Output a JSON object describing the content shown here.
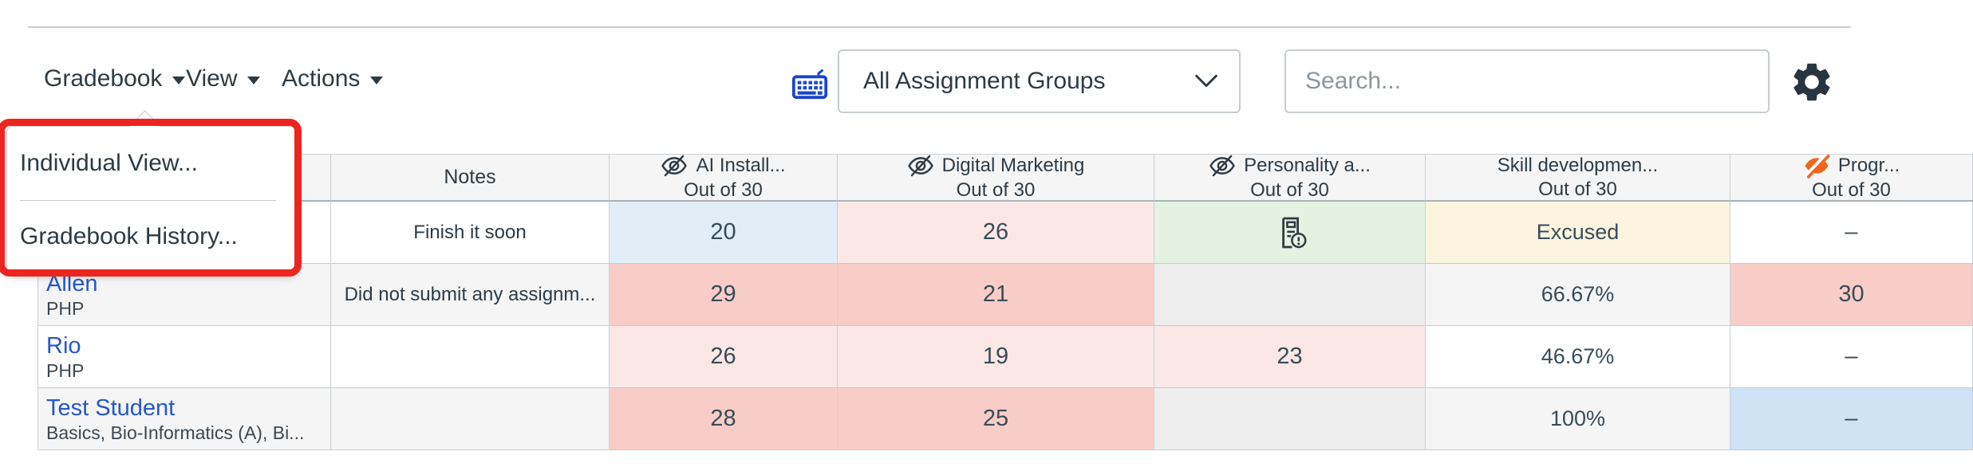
{
  "menubar": {
    "items": [
      {
        "label": "Gradebook"
      },
      {
        "label": "View"
      },
      {
        "label": "Actions"
      }
    ],
    "assignment_group_filter": "All Assignment Groups",
    "search_placeholder": "Search...",
    "keyboard_icon_color": "#1B45C9",
    "gear_icon_color": "#273540"
  },
  "dropdown_menu": {
    "items": [
      "Individual View...",
      "Gradebook History..."
    ],
    "annotation_color": "#EC2520"
  },
  "table": {
    "columns": [
      {
        "key": "student",
        "label": ""
      },
      {
        "key": "notes",
        "label": "Notes"
      },
      {
        "key": "a1",
        "title": "AI Install...",
        "subtitle": "Out of 30",
        "icon": "eye-off",
        "icon_color": "#2D3B45"
      },
      {
        "key": "a2",
        "title": "Digital Marketing",
        "subtitle": "Out of 30",
        "icon": "eye-off",
        "icon_color": "#2D3B45"
      },
      {
        "key": "a3",
        "title": "Personality a...",
        "subtitle": "Out of 30",
        "icon": "eye-off",
        "icon_color": "#2D3B45"
      },
      {
        "key": "a4",
        "title": "Skill developmen...",
        "subtitle": "Out of 30",
        "icon": null,
        "icon_color": null
      },
      {
        "key": "a5",
        "title": "Progr...",
        "subtitle": "Out of 30",
        "icon": "eye-off-solid",
        "icon_color": "#F0661F"
      }
    ],
    "rows": [
      {
        "student_name": "",
        "student_sub": "",
        "notes": "Finish it soon",
        "cells": [
          {
            "text": "20",
            "bg": "blue"
          },
          {
            "text": "26",
            "bg": "pink"
          },
          {
            "icon": "doc-alert",
            "text": "",
            "bg": "green"
          },
          {
            "text": "Excused",
            "bg": "cream"
          },
          {
            "text": "–",
            "bg": "none"
          }
        ]
      },
      {
        "student_name": "Allen",
        "student_sub": "PHP",
        "notes": "Did not submit any assignm...",
        "cells": [
          {
            "text": "29",
            "bg": "salmon"
          },
          {
            "text": "21",
            "bg": "salmon"
          },
          {
            "text": "",
            "bg": "empty"
          },
          {
            "text": "66.67%",
            "bg": "none"
          },
          {
            "text": "30",
            "bg": "salmon"
          }
        ]
      },
      {
        "student_name": "Rio",
        "student_sub": "PHP",
        "notes": "",
        "cells": [
          {
            "text": "26",
            "bg": "pink"
          },
          {
            "text": "19",
            "bg": "pink"
          },
          {
            "text": "23",
            "bg": "pink"
          },
          {
            "text": "46.67%",
            "bg": "none"
          },
          {
            "text": "–",
            "bg": "none"
          }
        ]
      },
      {
        "student_name": "Test Student",
        "student_sub": "Basics, Bio-Informatics (A), Bi...",
        "notes": "",
        "cells": [
          {
            "text": "28",
            "bg": "salmon"
          },
          {
            "text": "25",
            "bg": "salmon"
          },
          {
            "text": "",
            "bg": "empty"
          },
          {
            "text": "100%",
            "bg": "none"
          },
          {
            "text": "–",
            "bg": "lightblue"
          }
        ]
      }
    ],
    "status_colors": {
      "blue": "#E1EEF7",
      "pink": "#FBE8E6",
      "salmon": "#F9CDC7",
      "green": "#E4F2E1",
      "cream": "#FBF4DF",
      "lightblue": "#CEE3F5",
      "empty": "#EDEDED",
      "row_even": "#F5F5F5",
      "row_odd": "#FFFFFF"
    }
  }
}
